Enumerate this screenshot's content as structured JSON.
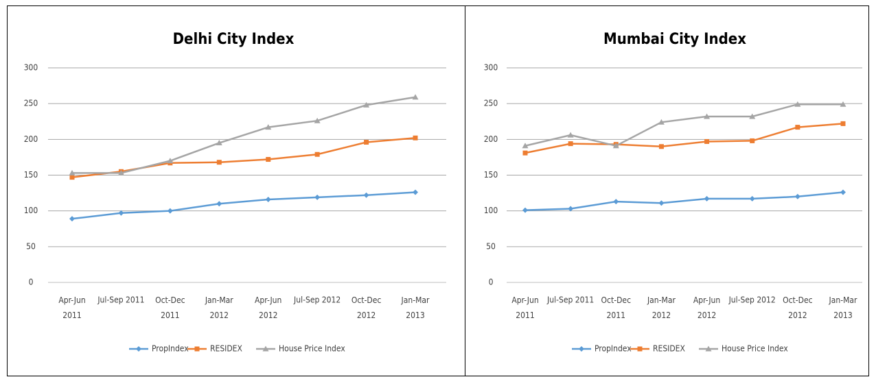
{
  "chart_data": [
    {
      "type": "line",
      "title": "Delhi City Index",
      "categories": [
        "Apr-Jun\n2011",
        "Jul-Sep 2011",
        "Oct-Dec\n2011",
        "Jan-Mar\n2012",
        "Apr-Jun\n2012",
        "Jul-Sep 2012",
        "Oct-Dec\n2012",
        "Jan-Mar\n2013"
      ],
      "series": [
        {
          "name": "PropIndex",
          "color": "#5b9bd5",
          "values": [
            89,
            97,
            100,
            110,
            116,
            119,
            122,
            126
          ]
        },
        {
          "name": "RESIDEX",
          "color": "#ed7d31",
          "values": [
            147,
            155,
            167,
            168,
            172,
            179,
            196,
            202
          ]
        },
        {
          "name": "House Price Index",
          "color": "#a5a5a5",
          "values": [
            153,
            153,
            170,
            195,
            217,
            226,
            248,
            259
          ]
        }
      ],
      "ylim": [
        0,
        300
      ],
      "yticks": [
        0,
        50,
        100,
        150,
        200,
        250,
        300
      ],
      "grid": true,
      "legend": "bottom"
    },
    {
      "type": "line",
      "title": "Mumbai City Index",
      "categories": [
        "Apr-Jun\n2011",
        "Jul-Sep 2011",
        "Oct-Dec\n2011",
        "Jan-Mar\n2012",
        "Apr-Jun\n2012",
        "Jul-Sep 2012",
        "Oct-Dec\n2012",
        "Jan-Mar\n2013"
      ],
      "series": [
        {
          "name": "PropIndex",
          "color": "#5b9bd5",
          "values": [
            101,
            103,
            113,
            111,
            117,
            117,
            120,
            126
          ]
        },
        {
          "name": "RESIDEX",
          "color": "#ed7d31",
          "values": [
            181,
            194,
            193,
            190,
            197,
            198,
            217,
            222
          ]
        },
        {
          "name": "House Price Index",
          "color": "#a5a5a5",
          "values": [
            191,
            206,
            191,
            224,
            232,
            232,
            249,
            249
          ]
        }
      ],
      "ylim": [
        0,
        300
      ],
      "yticks": [
        0,
        50,
        100,
        150,
        200,
        250,
        300
      ],
      "grid": true,
      "legend": "bottom"
    }
  ]
}
